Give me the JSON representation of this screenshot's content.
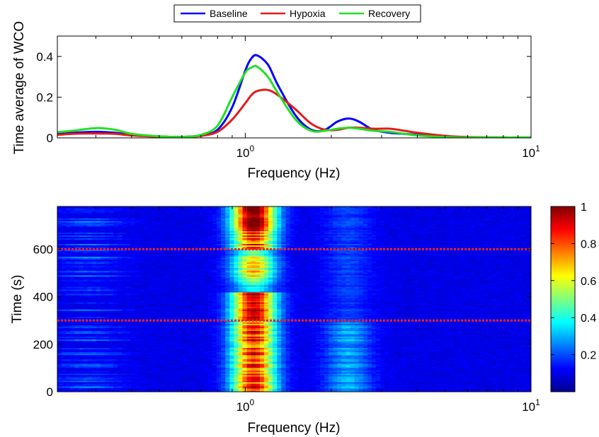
{
  "chart_data": [
    {
      "type": "line",
      "xlabel": "Frequency (Hz)",
      "ylabel": "Time average of WCO",
      "x_scale": "log",
      "xlim": [
        0.22,
        10
      ],
      "ylim": [
        0,
        0.5
      ],
      "xticks": [
        1,
        10
      ],
      "xtick_labels": [
        {
          "base": "10",
          "exp": "0"
        },
        {
          "base": "10",
          "exp": "1"
        }
      ],
      "yticks": [
        0,
        0.2,
        0.4
      ],
      "ytick_labels": [
        "0",
        "0.2",
        "0.4"
      ],
      "grid": false,
      "legend_position": "top-center",
      "x": [
        0.22,
        0.25,
        0.3,
        0.35,
        0.4,
        0.5,
        0.6,
        0.7,
        0.8,
        0.9,
        1.0,
        1.05,
        1.1,
        1.2,
        1.3,
        1.5,
        1.7,
        1.9,
        2.1,
        2.3,
        2.5,
        2.8,
        3.2,
        3.6,
        4.0,
        5.0,
        6.0,
        8.0,
        10.0
      ],
      "series": [
        {
          "name": "Baseline",
          "color": "#0000ff",
          "values": [
            0.02,
            0.025,
            0.03,
            0.025,
            0.015,
            0.007,
            0.005,
            0.012,
            0.04,
            0.15,
            0.33,
            0.39,
            0.405,
            0.36,
            0.26,
            0.11,
            0.04,
            0.04,
            0.08,
            0.095,
            0.08,
            0.04,
            0.025,
            0.02,
            0.015,
            0.005,
            0.003,
            0.002,
            0.002
          ]
        },
        {
          "name": "Hypoxia",
          "color": "#e31a1c",
          "values": [
            0.015,
            0.02,
            0.022,
            0.02,
            0.012,
            0.006,
            0.005,
            0.01,
            0.03,
            0.09,
            0.17,
            0.21,
            0.23,
            0.235,
            0.21,
            0.14,
            0.07,
            0.04,
            0.04,
            0.05,
            0.05,
            0.045,
            0.045,
            0.035,
            0.025,
            0.01,
            0.004,
            0.002,
            0.002
          ]
        },
        {
          "name": "Recovery",
          "color": "#22e022",
          "values": [
            0.028,
            0.035,
            0.048,
            0.04,
            0.02,
            0.008,
            0.005,
            0.015,
            0.06,
            0.2,
            0.32,
            0.345,
            0.35,
            0.3,
            0.22,
            0.09,
            0.035,
            0.035,
            0.045,
            0.05,
            0.045,
            0.035,
            0.03,
            0.02,
            0.012,
            0.004,
            0.002,
            0.002,
            0.002
          ]
        }
      ]
    },
    {
      "type": "heatmap",
      "xlabel": "Frequency (Hz)",
      "ylabel": "Time (s)",
      "x_scale": "log",
      "xlim": [
        0.22,
        10
      ],
      "ylim": [
        0,
        780
      ],
      "xticks": [
        1,
        10
      ],
      "xtick_labels": [
        {
          "base": "10",
          "exp": "0"
        },
        {
          "base": "10",
          "exp": "1"
        }
      ],
      "yticks": [
        0,
        200,
        400,
        600
      ],
      "ytick_labels": [
        "0",
        "200",
        "400",
        "600"
      ],
      "colormap": "jet",
      "clim": [
        0,
        1
      ],
      "colorbar_ticks": [
        0.2,
        0.4,
        0.6,
        0.8,
        1
      ],
      "colorbar_tick_labels": [
        "0.2",
        "0.4",
        "0.6",
        "0.8",
        "1"
      ],
      "reference_lines_time": [
        300,
        600
      ],
      "reference_line_color": "#ff2020"
    }
  ]
}
